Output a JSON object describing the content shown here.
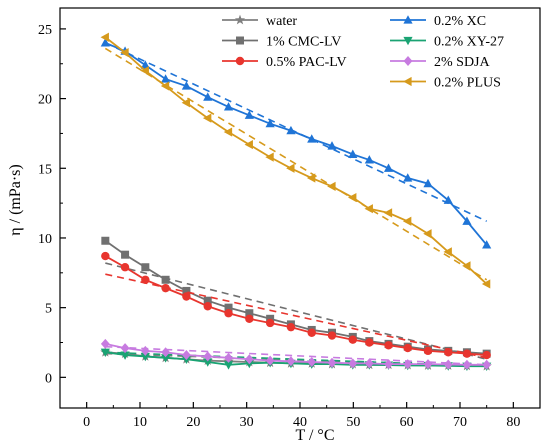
{
  "chart_data": {
    "type": "line",
    "title": "",
    "xlabel": "T / °C",
    "ylabel": "η / (mPa·s)",
    "xlim": [
      -5,
      85
    ],
    "ylim": [
      -2.2,
      26.5
    ],
    "xticks": [
      0,
      10,
      20,
      30,
      40,
      50,
      60,
      70,
      80
    ],
    "yticks": [
      0,
      5,
      10,
      15,
      20,
      25
    ],
    "grid": false,
    "legend_placement": "top",
    "x": [
      3.5,
      7.2,
      11,
      14.8,
      18.7,
      22.7,
      26.6,
      30.5,
      34.4,
      38.3,
      42.2,
      46,
      49.9,
      53,
      56.6,
      60.2,
      64,
      67.8,
      71.3,
      75
    ],
    "series": [
      {
        "name": "water",
        "color": "#7f7f7f",
        "marker": "star",
        "values": [
          1.8,
          1.7,
          1.5,
          1.4,
          1.3,
          1.2,
          1.15,
          1.1,
          1.05,
          1.0,
          1.0,
          0.95,
          0.95,
          0.9,
          0.9,
          0.88,
          0.85,
          0.85,
          0.82,
          0.8
        ],
        "fit": [
          1.7,
          0.8
        ]
      },
      {
        "name": "1% CMC-LV",
        "color": "#707070",
        "marker": "square",
        "values": [
          9.8,
          8.8,
          7.9,
          7.0,
          6.2,
          5.5,
          5.0,
          4.6,
          4.2,
          3.8,
          3.4,
          3.2,
          2.9,
          2.6,
          2.4,
          2.2,
          2.0,
          1.9,
          1.8,
          1.7
        ],
        "fit": [
          8.2,
          1.3
        ]
      },
      {
        "name": "0.5% PAC-LV",
        "color": "#e8352e",
        "marker": "circle",
        "values": [
          8.7,
          7.9,
          7.0,
          6.4,
          5.8,
          5.1,
          4.6,
          4.2,
          3.9,
          3.6,
          3.2,
          3.0,
          2.7,
          2.5,
          2.3,
          2.1,
          1.9,
          1.8,
          1.7,
          1.6
        ],
        "fit": [
          7.4,
          1.4
        ]
      },
      {
        "name": "0.2% XC",
        "color": "#1f74d6",
        "marker": "triangle-up",
        "values": [
          24.0,
          23.4,
          22.4,
          21.4,
          20.9,
          20.1,
          19.4,
          18.8,
          18.2,
          17.7,
          17.1,
          16.6,
          16.0,
          15.6,
          15.0,
          14.3,
          13.9,
          12.7,
          11.2,
          9.5
        ],
        "fit": [
          24.0,
          11.2
        ]
      },
      {
        "name": "0.2% XY-27",
        "color": "#1aa373",
        "marker": "triangle-down",
        "values": [
          1.8,
          1.6,
          1.5,
          1.4,
          1.3,
          1.1,
          0.9,
          1.0,
          1.05,
          1.0,
          0.95,
          0.95,
          0.9,
          0.9,
          0.88,
          0.85,
          0.85,
          0.82,
          0.8,
          0.8
        ],
        "fit": [
          1.8,
          0.8
        ]
      },
      {
        "name": "2% SDJA",
        "color": "#c77be0",
        "marker": "diamond",
        "values": [
          2.4,
          2.1,
          1.9,
          1.8,
          1.6,
          1.5,
          1.4,
          1.3,
          1.2,
          1.15,
          1.1,
          1.05,
          1.0,
          1.0,
          0.95,
          0.95,
          0.95,
          0.92,
          0.9,
          0.9
        ],
        "fit": [
          2.2,
          0.9
        ]
      },
      {
        "name": "0.2% PLUS",
        "color": "#d69a1c",
        "marker": "triangle-left",
        "values": [
          24.4,
          23.3,
          22.0,
          20.9,
          19.7,
          18.6,
          17.6,
          16.7,
          15.8,
          15.0,
          14.3,
          13.7,
          12.9,
          12.1,
          11.8,
          11.2,
          10.3,
          9.0,
          8.0,
          6.7
        ],
        "fit": [
          23.6,
          7.0
        ]
      }
    ]
  }
}
